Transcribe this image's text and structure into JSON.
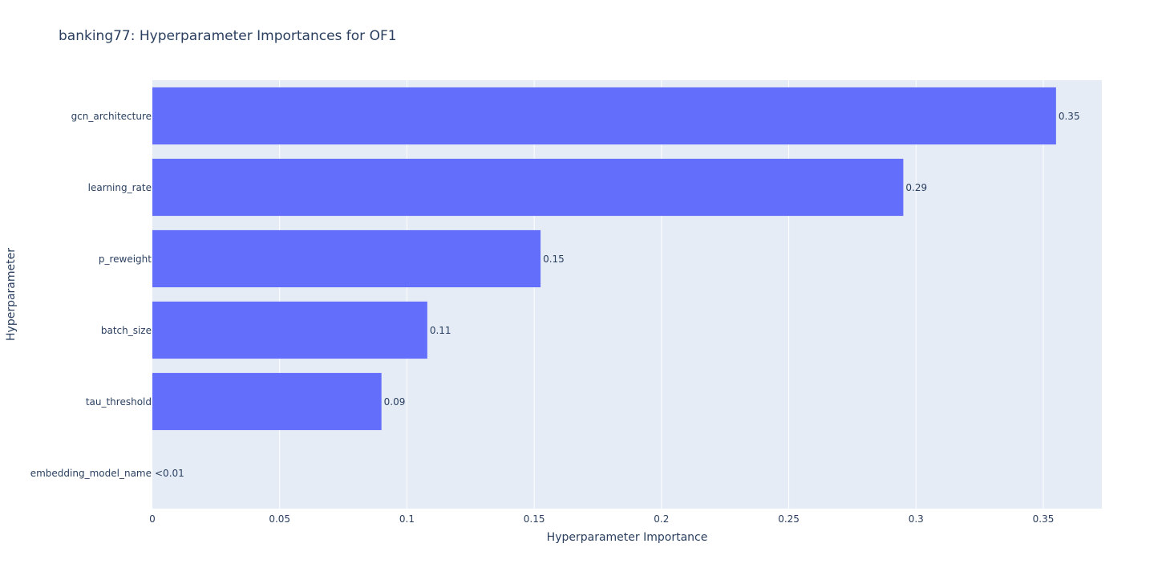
{
  "chart_data": {
    "type": "bar",
    "orientation": "horizontal",
    "title": "banking77: Hyperparameter Importances for OF1",
    "xlabel": "Hyperparameter Importance",
    "ylabel": "Hyperparameter",
    "xlim": [
      0,
      0.373
    ],
    "xticks": [
      0,
      0.05,
      0.1,
      0.15,
      0.2,
      0.25,
      0.3,
      0.35
    ],
    "xtick_labels": [
      "0",
      "0.05",
      "0.1",
      "0.15",
      "0.2",
      "0.25",
      "0.3",
      "0.35"
    ],
    "grid": true,
    "legend": "none",
    "categories": [
      "gcn_architecture",
      "learning_rate",
      "p_reweight",
      "batch_size",
      "tau_threshold",
      "embedding_model_name"
    ],
    "values": [
      0.355,
      0.295,
      0.1525,
      0.108,
      0.09,
      0.0
    ],
    "value_labels": [
      "0.35",
      "0.29",
      "0.15",
      "0.11",
      "0.09",
      "<0.01"
    ]
  },
  "colors": {
    "bar": "#636efa",
    "plot_bg": "#e5ecf6",
    "grid": "#ffffff",
    "text": "#2a3f5f"
  }
}
